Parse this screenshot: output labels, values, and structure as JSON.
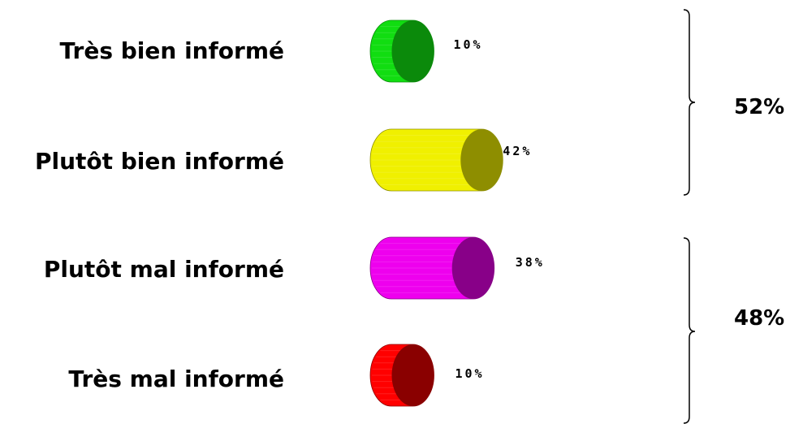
{
  "chart_data": {
    "type": "bar",
    "orientation": "horizontal",
    "categories": [
      "Très bien informé",
      "Plutôt bien informé",
      "Plutôt mal informé",
      "Très mal informé"
    ],
    "values": [
      10,
      42,
      38,
      10
    ],
    "value_labels": [
      "10%",
      "42%",
      "38%",
      "10%"
    ],
    "colors": [
      {
        "front": "#11dd11",
        "cap": "#0b8a0b"
      },
      {
        "front": "#f0f000",
        "cap": "#8e8e00"
      },
      {
        "front": "#ee00ee",
        "cap": "#880088"
      },
      {
        "front": "#ff0000",
        "cap": "#8a0000"
      }
    ],
    "groups": [
      {
        "label": "52%",
        "members": [
          0,
          1
        ]
      },
      {
        "label": "48%",
        "members": [
          2,
          3
        ]
      }
    ],
    "title": "",
    "xlabel": "",
    "ylabel": "",
    "xlim": [
      0,
      50
    ],
    "grid": false,
    "legend": "none"
  }
}
